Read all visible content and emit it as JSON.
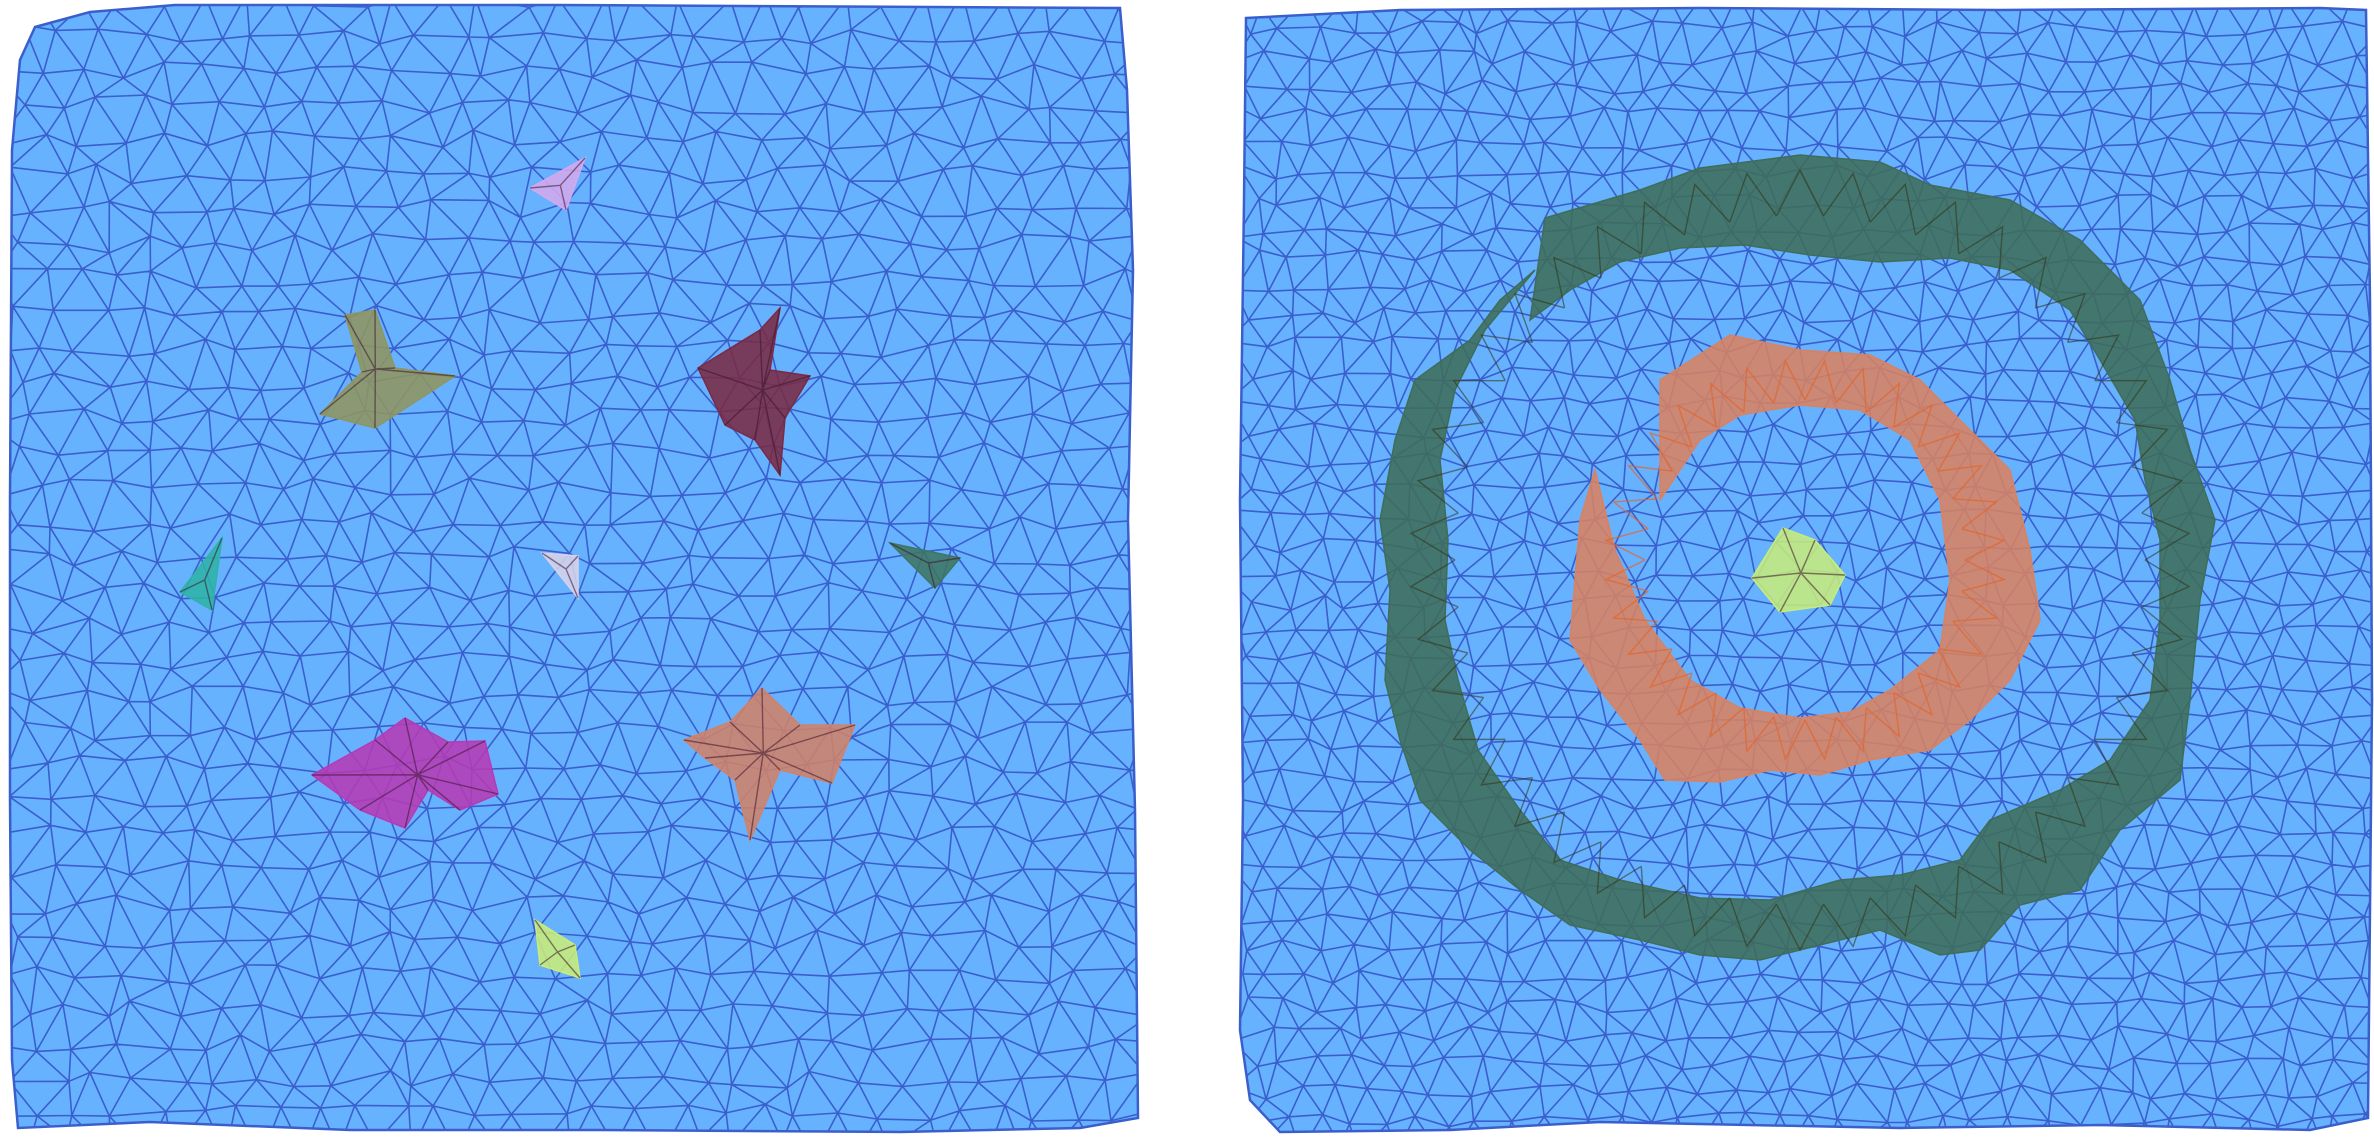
{
  "colors": {
    "background": "#ffffff",
    "mesh_fill": "#66b2ff",
    "mesh_edge": "#3a5fcd"
  },
  "panels": [
    {
      "id": "left",
      "regions": [
        {
          "name": "lavender",
          "color": "#d4a8ee"
        },
        {
          "name": "olive",
          "color": "#8f9561"
        },
        {
          "name": "maroon",
          "color": "#7a2a45"
        },
        {
          "name": "teal",
          "color": "#2fb3a8"
        },
        {
          "name": "lightgray",
          "color": "#d7d2ea"
        },
        {
          "name": "darkgreen",
          "color": "#3f7564"
        },
        {
          "name": "magenta",
          "color": "#b63ab6"
        },
        {
          "name": "salmon",
          "color": "#d0826a"
        },
        {
          "name": "lime",
          "color": "#c9ec79"
        }
      ]
    },
    {
      "id": "right",
      "regions": [
        {
          "name": "outer-ring",
          "color": "#3f6d5a"
        },
        {
          "name": "inner-ring",
          "color": "#d88262"
        },
        {
          "name": "center",
          "color": "#c6ec7c"
        }
      ]
    }
  ]
}
